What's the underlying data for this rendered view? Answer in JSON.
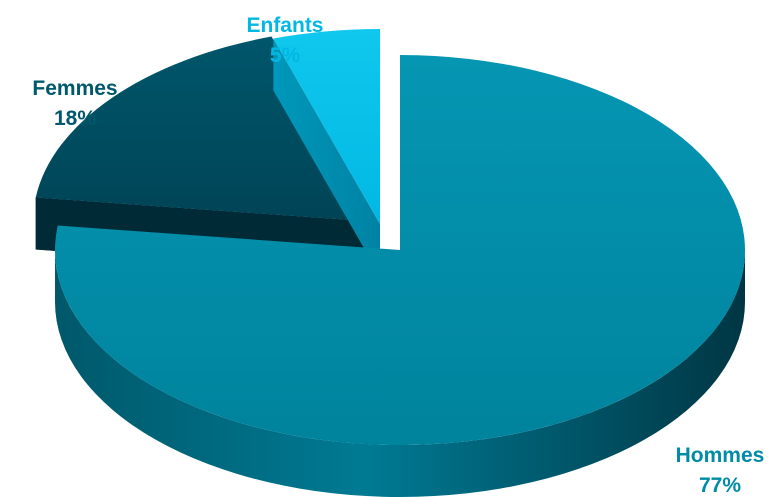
{
  "chart_data": {
    "type": "pie",
    "style": "3d-exploded",
    "title": "",
    "slices": [
      {
        "name": "Hommes",
        "value": 77,
        "label": "Hommes",
        "value_label": "77%",
        "color": "#008ba6",
        "label_color": "#008ba6"
      },
      {
        "name": "Femmes",
        "value": 18,
        "label": "Femmes",
        "value_label": "18%",
        "color": "#004a5e",
        "label_color": "#00586c"
      },
      {
        "name": "Enfants",
        "value": 5,
        "label": "Enfants",
        "value_label": "5%",
        "color": "#00c0e8",
        "label_color": "#00b8e3"
      }
    ],
    "legend": "none"
  }
}
